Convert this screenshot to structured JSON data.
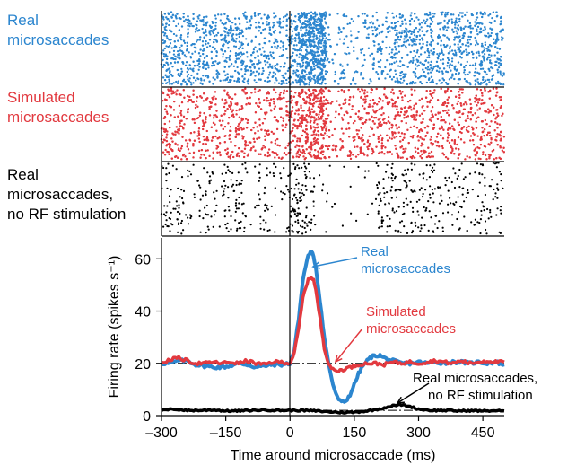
{
  "colors": {
    "real": "#2c86cf",
    "simulated": "#e2393f",
    "no_rf": "#000000"
  },
  "raster": {
    "rows": [
      {
        "key": "real",
        "label_lines": [
          "Real",
          "microsaccades"
        ]
      },
      {
        "key": "simulated",
        "label_lines": [
          "Simulated",
          "microsaccades"
        ]
      },
      {
        "key": "no_rf",
        "label_lines": [
          "Real",
          "microsaccades,",
          "no RF stimulation"
        ]
      }
    ]
  },
  "chart_data": {
    "type": "line",
    "xlabel": "Time around microsaccade (ms)",
    "ylabel": "Firing rate (spikes s⁻¹)",
    "xlim": [
      -300,
      500
    ],
    "ylim": [
      0,
      68
    ],
    "x_ticks": [
      -300,
      -150,
      0,
      150,
      300,
      450
    ],
    "x_tick_labels": [
      "–300",
      "–150",
      "0",
      "150",
      "300",
      "450"
    ],
    "y_ticks": [
      0,
      20,
      40,
      60
    ],
    "y_tick_labels": [
      "0",
      "20",
      "40",
      "60"
    ],
    "baselines": [
      20,
      2
    ],
    "series": [
      {
        "name": "Real microsaccades",
        "key": "real",
        "x": [
          -300,
          -280,
          -260,
          -240,
          -220,
          -200,
          -180,
          -160,
          -140,
          -120,
          -100,
          -80,
          -60,
          -40,
          -20,
          0,
          10,
          20,
          30,
          40,
          45,
          50,
          55,
          60,
          70,
          80,
          90,
          100,
          110,
          120,
          130,
          140,
          150,
          160,
          170,
          180,
          190,
          200,
          210,
          220,
          240,
          260,
          280,
          300,
          320,
          340,
          360,
          380,
          400,
          420,
          440,
          460,
          480,
          500
        ],
        "y": [
          20,
          20,
          21,
          21,
          19.5,
          19,
          18.5,
          18.5,
          19,
          20,
          19.5,
          18.5,
          19,
          19.5,
          19.5,
          20,
          25,
          37,
          52,
          60,
          62,
          62.5,
          61,
          57,
          44,
          30,
          20,
          12,
          7,
          5,
          5.5,
          8,
          12,
          16,
          19,
          21,
          22.5,
          23,
          23,
          22,
          21,
          20,
          20,
          20.5,
          20,
          20.5,
          20,
          20.5,
          20.5,
          20,
          20.5,
          20,
          20.5,
          19.5
        ]
      },
      {
        "name": "Simulated microsaccades",
        "key": "simulated",
        "x": [
          -300,
          -280,
          -260,
          -240,
          -220,
          -200,
          -180,
          -160,
          -140,
          -120,
          -100,
          -80,
          -60,
          -40,
          -20,
          0,
          10,
          20,
          30,
          40,
          45,
          50,
          55,
          60,
          70,
          80,
          90,
          100,
          110,
          120,
          140,
          160,
          180,
          200,
          220,
          240,
          260,
          280,
          300,
          320,
          340,
          360,
          380,
          400,
          420,
          440,
          460,
          480,
          500
        ],
        "y": [
          20,
          21.5,
          22,
          21,
          20,
          20,
          20.5,
          20,
          20.5,
          20,
          21,
          20,
          19.5,
          20.5,
          20.5,
          20,
          24,
          33,
          45,
          51,
          52.5,
          53,
          52,
          48,
          37,
          26,
          20,
          17.5,
          17,
          17.5,
          18.5,
          19.5,
          20,
          20,
          19.5,
          20.5,
          20,
          20.5,
          20,
          20.5,
          21,
          20.5,
          20,
          21,
          20,
          20.5,
          21,
          20.5,
          20.5
        ]
      },
      {
        "name": "Real microsaccades, no RF stimulation",
        "key": "no_rf",
        "x": [
          -300,
          -270,
          -240,
          -210,
          -180,
          -150,
          -120,
          -90,
          -60,
          -30,
          0,
          30,
          60,
          90,
          120,
          150,
          180,
          200,
          220,
          240,
          260,
          280,
          300,
          330,
          360,
          390,
          420,
          450,
          480,
          500
        ],
        "y": [
          2,
          2.5,
          2,
          2,
          2.2,
          1.8,
          1.8,
          2,
          2.2,
          2,
          2,
          2,
          1.8,
          1.5,
          1.2,
          1.3,
          1.8,
          2.3,
          3,
          3.8,
          4.2,
          3.5,
          2.5,
          2,
          2,
          1.8,
          1.9,
          1.8,
          1.9,
          1.8
        ]
      }
    ],
    "annotations": [
      {
        "key": "real",
        "lines": [
          "Real",
          "microsaccades"
        ]
      },
      {
        "key": "simulated",
        "lines": [
          "Simulated",
          "microsaccades"
        ]
      },
      {
        "key": "no_rf",
        "lines": [
          "Real microsaccades,",
          "no RF stimulation"
        ]
      }
    ]
  }
}
